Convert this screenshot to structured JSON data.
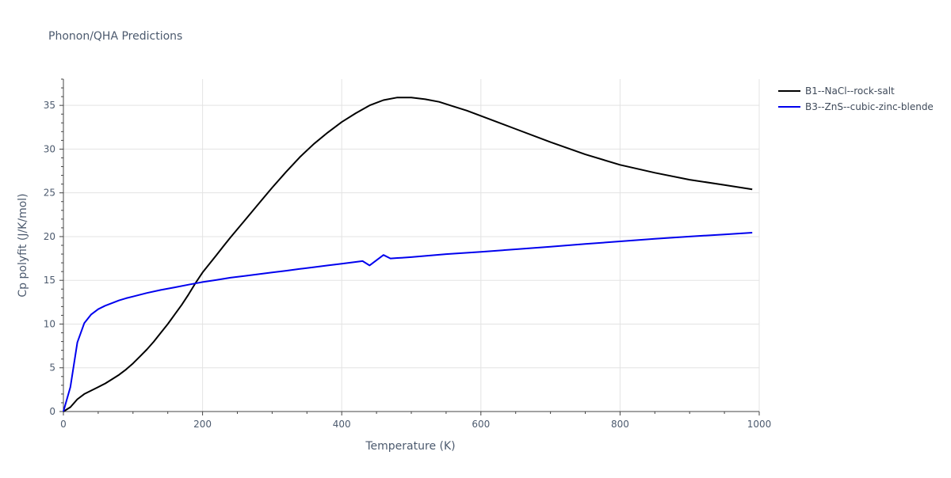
{
  "chart_data": {
    "type": "line",
    "title": "Phonon/QHA Predictions",
    "xlabel": "Temperature (K)",
    "ylabel": "Cp polyfit (J/K/mol)",
    "xlim": [
      0,
      1000
    ],
    "ylim": [
      0,
      38
    ],
    "x_ticks": [
      0,
      200,
      400,
      600,
      800,
      1000
    ],
    "y_ticks": [
      0,
      5,
      10,
      15,
      20,
      25,
      30,
      35
    ],
    "grid": true,
    "legend_position": "top-right",
    "series": [
      {
        "name": "B1--NaCl--rock-salt",
        "color": "#000000",
        "x": [
          0,
          10,
          20,
          30,
          40,
          50,
          60,
          70,
          80,
          90,
          100,
          110,
          120,
          130,
          140,
          150,
          160,
          170,
          180,
          190,
          200,
          210,
          220,
          230,
          240,
          260,
          280,
          300,
          320,
          340,
          360,
          380,
          400,
          420,
          440,
          460,
          480,
          500,
          520,
          540,
          560,
          580,
          600,
          650,
          700,
          750,
          800,
          850,
          900,
          950,
          990
        ],
        "y": [
          0,
          0.5,
          1.4,
          2.0,
          2.4,
          2.8,
          3.2,
          3.7,
          4.2,
          4.8,
          5.5,
          6.3,
          7.1,
          8.0,
          9.0,
          10.0,
          11.1,
          12.2,
          13.4,
          14.7,
          15.9,
          16.9,
          17.9,
          18.9,
          19.9,
          21.8,
          23.7,
          25.6,
          27.4,
          29.1,
          30.6,
          31.9,
          33.1,
          34.1,
          35.0,
          35.6,
          35.9,
          35.9,
          35.7,
          35.4,
          34.9,
          34.4,
          33.8,
          32.3,
          30.8,
          29.4,
          28.2,
          27.3,
          26.5,
          25.9,
          25.4
        ]
      },
      {
        "name": "B3--ZnS--cubic-zinc-blende",
        "color": "#0000ee",
        "x": [
          0,
          10,
          20,
          30,
          40,
          50,
          60,
          70,
          80,
          90,
          100,
          120,
          140,
          160,
          180,
          200,
          220,
          240,
          260,
          280,
          300,
          320,
          340,
          360,
          380,
          400,
          420,
          430,
          440,
          450,
          460,
          470,
          480,
          490,
          500,
          550,
          600,
          650,
          700,
          750,
          800,
          850,
          900,
          950,
          990
        ],
        "y": [
          0,
          2.8,
          7.9,
          10.1,
          11.1,
          11.7,
          12.1,
          12.4,
          12.7,
          12.95,
          13.15,
          13.55,
          13.9,
          14.2,
          14.5,
          14.8,
          15.05,
          15.3,
          15.5,
          15.7,
          15.9,
          16.1,
          16.3,
          16.5,
          16.7,
          16.9,
          17.1,
          17.2,
          16.7,
          17.3,
          17.9,
          17.5,
          17.55,
          17.6,
          17.65,
          18.0,
          18.25,
          18.55,
          18.85,
          19.15,
          19.45,
          19.75,
          20.0,
          20.25,
          20.45
        ]
      }
    ]
  }
}
